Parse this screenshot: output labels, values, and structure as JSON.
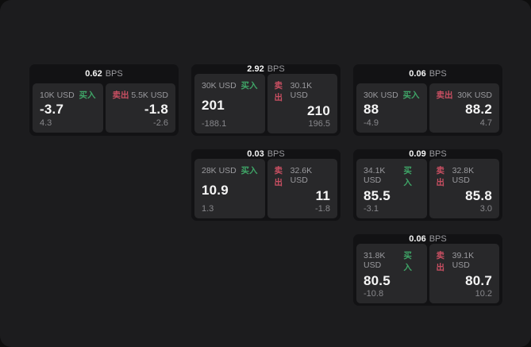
{
  "labels": {
    "bps_unit": "BPS",
    "buy": "买入",
    "sell": "卖出"
  },
  "colors": {
    "outer_bg": "#0e0e0e",
    "window_bg": "#1c1c1e",
    "card_bg": "#121214",
    "panel_bg": "#28282a",
    "value_text": "#f5f5f5",
    "muted_text": "#9a9a9e",
    "delta_text": "#87878b",
    "buy_color": "#3fa567",
    "sell_color": "#c94f62"
  },
  "cards": [
    {
      "row": 1,
      "col": 1,
      "bps": "0.62",
      "buy": {
        "notional": "10K USD",
        "price": "-3.7",
        "delta": "4.3"
      },
      "sell": {
        "notional": "5.5K USD",
        "price": "-1.8",
        "delta": "-2.6"
      }
    },
    {
      "row": 1,
      "col": 2,
      "bps": "2.92",
      "buy": {
        "notional": "30K USD",
        "price": "201",
        "delta": "-188.1"
      },
      "sell": {
        "notional": "30.1K USD",
        "price": "210",
        "delta": "196.5"
      }
    },
    {
      "row": 1,
      "col": 3,
      "bps": "0.06",
      "buy": {
        "notional": "30K USD",
        "price": "88",
        "delta": "-4.9"
      },
      "sell": {
        "notional": "30K USD",
        "price": "88.2",
        "delta": "4.7"
      }
    },
    {
      "row": 2,
      "col": 2,
      "bps": "0.03",
      "buy": {
        "notional": "28K USD",
        "price": "10.9",
        "delta": "1.3"
      },
      "sell": {
        "notional": "32.6K USD",
        "price": "11",
        "delta": "-1.8"
      }
    },
    {
      "row": 2,
      "col": 3,
      "bps": "0.09",
      "buy": {
        "notional": "34.1K USD",
        "price": "85.5",
        "delta": "-3.1"
      },
      "sell": {
        "notional": "32.8K USD",
        "price": "85.8",
        "delta": "3.0"
      }
    },
    {
      "row": 3,
      "col": 3,
      "bps": "0.06",
      "buy": {
        "notional": "31.8K USD",
        "price": "80.5",
        "delta": "-10.8"
      },
      "sell": {
        "notional": "39.1K USD",
        "price": "80.7",
        "delta": "10.2"
      }
    }
  ]
}
